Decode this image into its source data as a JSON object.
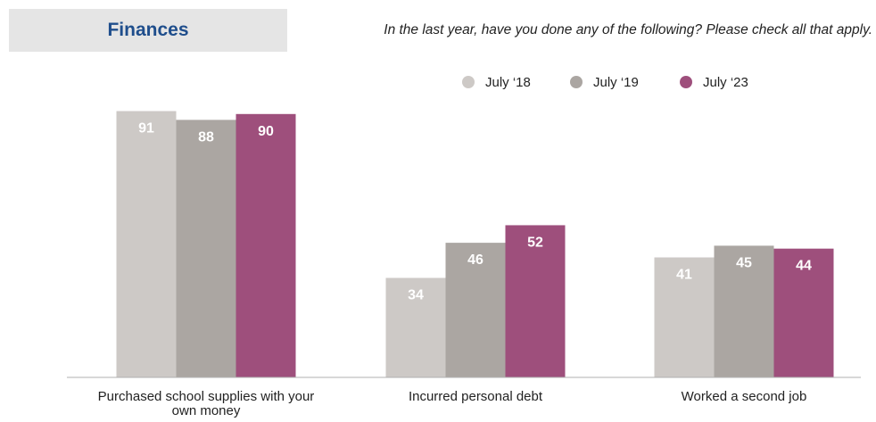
{
  "header": {
    "title": "Finances",
    "question": "In the last year, have you done any of the following? Please check all that apply."
  },
  "colors": {
    "July '18": "#cdc9c6",
    "July '19": "#aba6a2",
    "July '23": "#9e4f7c",
    "axis": "#b0b0b0",
    "label_light": "#ffffff"
  },
  "chart_data": {
    "type": "bar",
    "title": "",
    "xlabel": "",
    "ylabel": "",
    "ylim": [
      0,
      100
    ],
    "grid": false,
    "legend_position": "top-right",
    "categories": [
      [
        "Purchased school supplies with your",
        "own money"
      ],
      [
        "Incurred personal debt"
      ],
      [
        "Worked a second job"
      ]
    ],
    "series": [
      {
        "name": "July ‘18",
        "values": [
          91,
          34,
          41
        ]
      },
      {
        "name": "July ‘19",
        "values": [
          88,
          46,
          45
        ]
      },
      {
        "name": "July ‘23",
        "values": [
          90,
          52,
          44
        ]
      }
    ]
  }
}
